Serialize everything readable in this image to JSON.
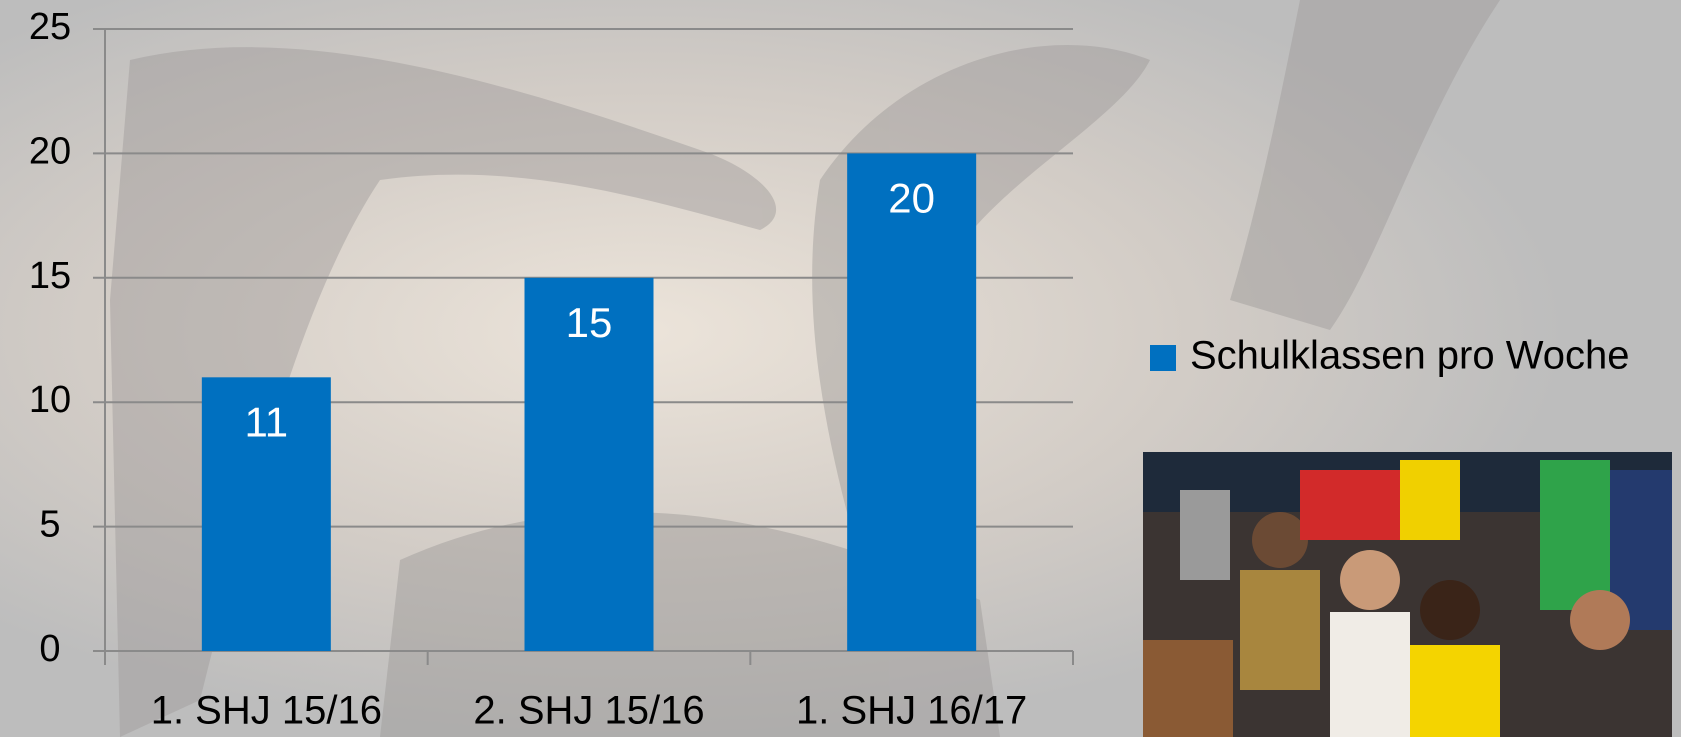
{
  "chart_data": {
    "type": "bar",
    "categories": [
      "1. SHJ 15/16",
      "2. SHJ 15/16",
      "1. SHJ 16/17"
    ],
    "series": [
      {
        "name": "Schulklassen pro Woche",
        "color": "#0070c0",
        "values": [
          11,
          15,
          20
        ]
      }
    ],
    "ylim": [
      0,
      25
    ],
    "yticks": [
      0,
      5,
      10,
      15,
      20,
      25
    ],
    "grid": true,
    "legend": "right"
  }
}
